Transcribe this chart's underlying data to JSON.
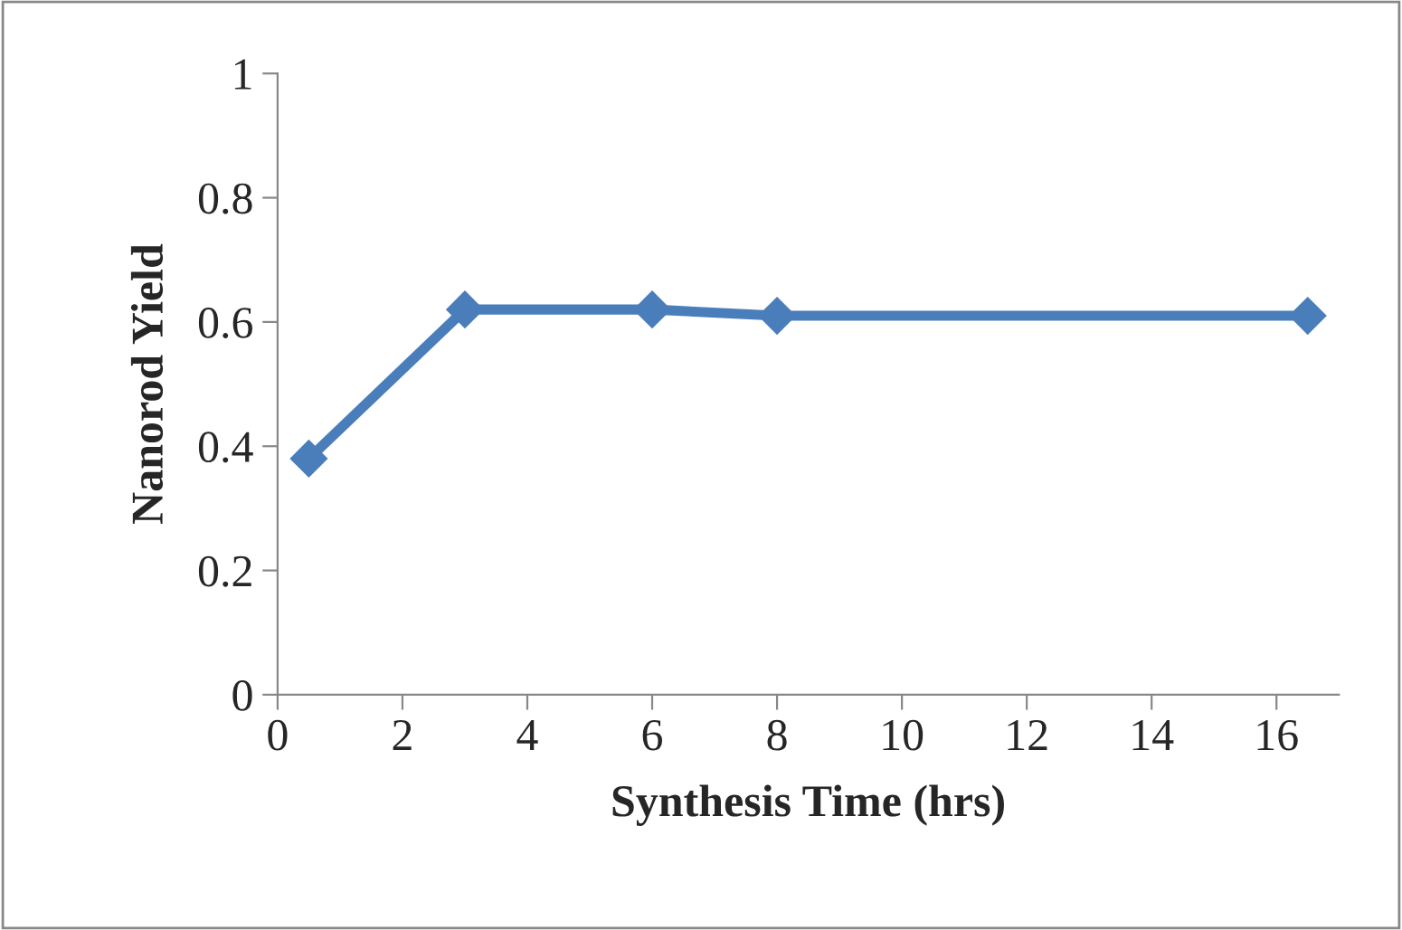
{
  "chart_data": {
    "type": "line",
    "xlabel": "Synthesis Time (hrs)",
    "ylabel": "Nanorod Yield",
    "series": [
      {
        "color": "#4a7ebb",
        "x": [
          0.5,
          3,
          6,
          8,
          16.5
        ],
        "values": [
          0.38,
          0.62,
          0.62,
          0.61,
          0.61
        ]
      }
    ],
    "xlim": [
      0,
      17
    ],
    "xticks": [
      0,
      2,
      4,
      6,
      8,
      10,
      12,
      14,
      16
    ],
    "ylim": [
      0,
      1
    ],
    "yticks": [
      0,
      0.2,
      0.4,
      0.6,
      0.8,
      1
    ],
    "marker": "diamond",
    "line_style": "solid",
    "grid": false,
    "legend": false
  }
}
